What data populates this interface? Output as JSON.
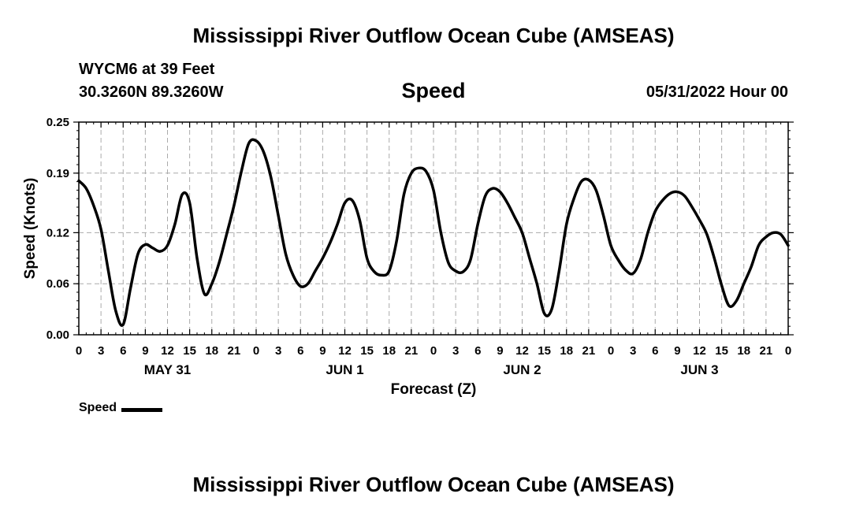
{
  "header": {
    "title": "Mississippi River Outflow Ocean Cube (AMSEAS)",
    "station": "WYCM6 at 39 Feet",
    "coords": "30.3260N  89.3260W",
    "variable": "Speed",
    "datetime": "05/31/2022 Hour 00"
  },
  "legend": {
    "label": "Speed"
  },
  "footer": {
    "title": "Mississippi River Outflow Ocean Cube (AMSEAS)"
  },
  "chart_data": {
    "type": "line",
    "title": "Speed",
    "xlabel": "Forecast (Z)",
    "ylabel": "Speed (Knots)",
    "xlim": [
      0,
      96
    ],
    "ylim": [
      0,
      0.25
    ],
    "grid": true,
    "yticks": [
      "0.00",
      "0.06",
      "0.12",
      "0.19",
      "0.25"
    ],
    "xtick_labels": [
      "0",
      "3",
      "6",
      "9",
      "12",
      "15",
      "18",
      "21",
      "0",
      "3",
      "6",
      "9",
      "12",
      "15",
      "18",
      "21",
      "0",
      "3",
      "6",
      "9",
      "12",
      "15",
      "18",
      "21",
      "0",
      "3",
      "6",
      "9",
      "12",
      "15",
      "18",
      "21",
      "0"
    ],
    "day_labels": [
      {
        "label": "MAY 31",
        "center_hour": 12
      },
      {
        "label": "JUN 1",
        "center_hour": 36
      },
      {
        "label": "JUN 2",
        "center_hour": 60
      },
      {
        "label": "JUN 3",
        "center_hour": 84
      }
    ],
    "line_color": "#000000",
    "series": [
      {
        "name": "Speed",
        "x": [
          0,
          1,
          2,
          3,
          4,
          5,
          6,
          7,
          8,
          9,
          10,
          11,
          12,
          13,
          14,
          15,
          16,
          17,
          18,
          19,
          20,
          21,
          22,
          23,
          24,
          25,
          26,
          27,
          28,
          29,
          30,
          31,
          32,
          33,
          34,
          35,
          36,
          37,
          38,
          39,
          40,
          41,
          42,
          43,
          44,
          45,
          46,
          47,
          48,
          49,
          50,
          51,
          52,
          53,
          54,
          55,
          56,
          57,
          58,
          59,
          60,
          61,
          62,
          63,
          64,
          65,
          66,
          67,
          68,
          69,
          70,
          71,
          72,
          73,
          74,
          75,
          76,
          77,
          78,
          79,
          80,
          81,
          82,
          83,
          84,
          85,
          86,
          87,
          88,
          89,
          90,
          91,
          92,
          93,
          94,
          95,
          96
        ],
        "values": [
          0.181,
          0.172,
          0.152,
          0.124,
          0.075,
          0.028,
          0.012,
          0.055,
          0.095,
          0.106,
          0.102,
          0.098,
          0.105,
          0.13,
          0.165,
          0.155,
          0.09,
          0.048,
          0.06,
          0.085,
          0.118,
          0.152,
          0.192,
          0.225,
          0.228,
          0.215,
          0.185,
          0.14,
          0.095,
          0.07,
          0.057,
          0.06,
          0.075,
          0.09,
          0.108,
          0.13,
          0.155,
          0.158,
          0.135,
          0.09,
          0.074,
          0.07,
          0.075,
          0.11,
          0.165,
          0.19,
          0.196,
          0.192,
          0.17,
          0.12,
          0.085,
          0.075,
          0.074,
          0.088,
          0.13,
          0.163,
          0.172,
          0.168,
          0.155,
          0.138,
          0.12,
          0.09,
          0.06,
          0.025,
          0.03,
          0.075,
          0.13,
          0.16,
          0.18,
          0.182,
          0.17,
          0.14,
          0.105,
          0.088,
          0.076,
          0.072,
          0.088,
          0.12,
          0.145,
          0.158,
          0.166,
          0.168,
          0.163,
          0.15,
          0.135,
          0.118,
          0.09,
          0.058,
          0.034,
          0.04,
          0.06,
          0.08,
          0.105,
          0.115,
          0.12,
          0.118,
          0.105
        ]
      }
    ]
  }
}
